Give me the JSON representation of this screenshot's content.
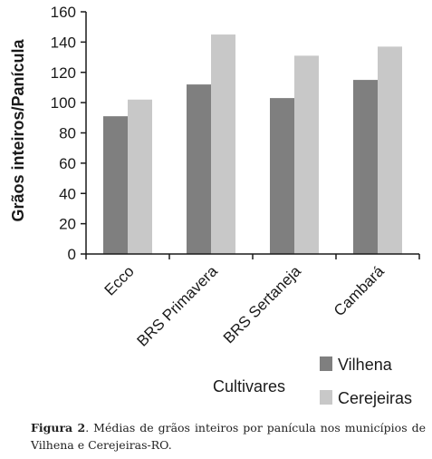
{
  "chart_data": {
    "type": "bar",
    "categories": [
      "Ecco",
      "BRS Primavera",
      "BRS Sertaneja",
      "Cambará"
    ],
    "series": [
      {
        "name": "Vilhena",
        "values": [
          91,
          112,
          103,
          115
        ],
        "color": "#7f7f7f"
      },
      {
        "name": "Cerejeiras",
        "values": [
          102,
          145,
          131,
          137
        ],
        "color": "#c8c8c8"
      }
    ],
    "xlabel": "Cultivares",
    "ylabel": "Grãos inteiros/Panícula",
    "ylim": [
      0,
      160
    ],
    "yticks": [
      0,
      20,
      40,
      60,
      80,
      100,
      120,
      140,
      160
    ],
    "legend_position": "bottom-right",
    "grid": false
  },
  "caption": {
    "label": "Figura 2",
    "separator": ".",
    "text": "Médias de grãos inteiros por panícula nos municípios de Vilhena e Cerejeiras-RO."
  }
}
